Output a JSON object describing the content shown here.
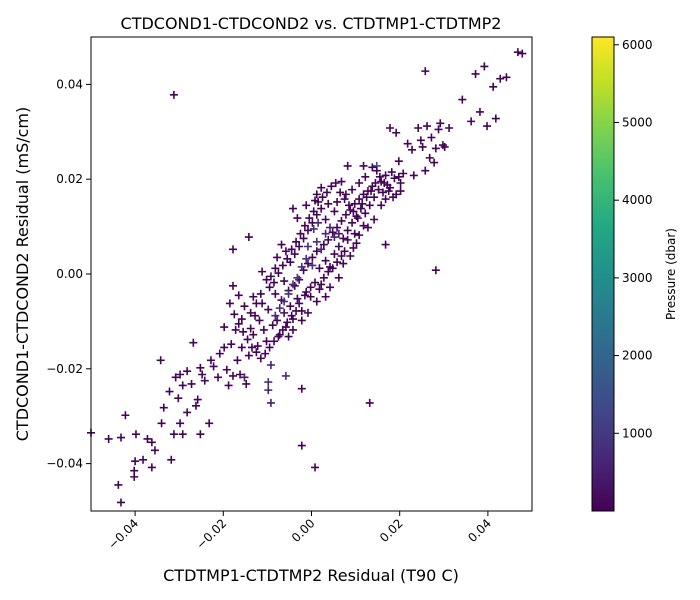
{
  "chart_data": {
    "type": "scatter",
    "title": "CTDCOND1-CTDCOND2 vs. CTDTMP1-CTDTMP2",
    "xlabel": "CTDTMP1-CTDTMP2 Residual (T90 C)",
    "ylabel": "CTDCOND1-CTDCOND2 Residual (mS/cm)",
    "xlim": [
      -0.05,
      0.05
    ],
    "ylim": [
      -0.05,
      0.05
    ],
    "xticks": [
      -0.04,
      -0.02,
      0.0,
      0.02,
      0.04
    ],
    "xtick_labels": [
      "−0.04",
      "−0.02",
      "0.00",
      "0.02",
      "0.04"
    ],
    "yticks": [
      -0.04,
      -0.02,
      0.0,
      0.02,
      0.04
    ],
    "ytick_labels": [
      "−0.04",
      "−0.02",
      "0.00",
      "0.02",
      "0.04"
    ],
    "marker": "+",
    "grid": false,
    "colorbar": {
      "label": "Pressure (dbar)",
      "colormap": "viridis",
      "range": [
        0,
        6100
      ],
      "ticks": [
        1000,
        2000,
        3000,
        4000,
        5000,
        6000
      ],
      "tick_labels": [
        "1000",
        "2000",
        "3000",
        "4000",
        "5000",
        "6000"
      ]
    },
    "points": [
      [
        -0.05,
        -0.0335,
        50
      ],
      [
        -0.046,
        -0.0348,
        50
      ],
      [
        -0.0432,
        -0.0345,
        50
      ],
      [
        -0.0422,
        -0.0298,
        50
      ],
      [
        -0.0438,
        -0.0445,
        50
      ],
      [
        -0.0432,
        -0.0482,
        50
      ],
      [
        -0.0402,
        -0.0415,
        50
      ],
      [
        -0.0402,
        -0.0428,
        50
      ],
      [
        -0.04,
        -0.0395,
        50
      ],
      [
        -0.0398,
        -0.0338,
        50
      ],
      [
        -0.0382,
        -0.0392,
        50
      ],
      [
        -0.0372,
        -0.0348,
        50
      ],
      [
        -0.0362,
        -0.0408,
        50
      ],
      [
        -0.0362,
        -0.0355,
        50
      ],
      [
        -0.0355,
        -0.0372,
        50
      ],
      [
        -0.034,
        -0.0315,
        50
      ],
      [
        -0.0335,
        -0.0282,
        50
      ],
      [
        -0.0342,
        -0.0182,
        50
      ],
      [
        -0.0322,
        -0.0248,
        50
      ],
      [
        -0.0318,
        -0.0392,
        50
      ],
      [
        -0.0312,
        -0.0338,
        50
      ],
      [
        -0.0308,
        -0.0218,
        50
      ],
      [
        -0.0302,
        -0.0262,
        50
      ],
      [
        -0.0298,
        -0.0212,
        50
      ],
      [
        -0.0298,
        -0.0315,
        50
      ],
      [
        -0.0292,
        -0.0338,
        50
      ],
      [
        -0.0292,
        -0.0235,
        50
      ],
      [
        -0.0282,
        -0.0292,
        50
      ],
      [
        -0.0282,
        -0.0205,
        50
      ],
      [
        -0.0272,
        -0.0232,
        50
      ],
      [
        -0.0268,
        -0.0145,
        50
      ],
      [
        -0.0262,
        -0.0278,
        50
      ],
      [
        -0.0258,
        -0.0265,
        50
      ],
      [
        -0.0252,
        -0.0198,
        50
      ],
      [
        -0.0252,
        -0.0338,
        50
      ],
      [
        -0.0248,
        -0.0212,
        50
      ],
      [
        -0.0242,
        -0.0225,
        200
      ],
      [
        -0.0232,
        -0.0315,
        50
      ],
      [
        -0.0228,
        -0.0182,
        50
      ],
      [
        -0.0222,
        -0.0195,
        50
      ],
      [
        -0.0212,
        -0.0218,
        50
      ],
      [
        -0.0208,
        -0.0168,
        50
      ],
      [
        -0.0198,
        -0.0155,
        50
      ],
      [
        -0.0198,
        -0.0112,
        50
      ],
      [
        -0.0192,
        -0.0202,
        50
      ],
      [
        -0.0188,
        -0.0235,
        50
      ],
      [
        -0.0182,
        -0.0148,
        50
      ],
      [
        -0.0178,
        -0.0215,
        50
      ],
      [
        -0.0172,
        -0.0118,
        50
      ],
      [
        -0.0168,
        -0.0182,
        50
      ],
      [
        -0.0162,
        -0.0212,
        50
      ],
      [
        -0.0158,
        -0.0155,
        50
      ],
      [
        -0.0158,
        -0.0095,
        50
      ],
      [
        -0.0152,
        -0.0218,
        500
      ],
      [
        -0.0148,
        -0.0232,
        50
      ],
      [
        -0.0142,
        -0.0172,
        50
      ],
      [
        -0.0138,
        -0.0115,
        50
      ],
      [
        -0.0132,
        -0.0128,
        50
      ],
      [
        -0.0128,
        -0.0088,
        50
      ],
      [
        -0.0122,
        -0.0152,
        50
      ],
      [
        -0.0118,
        -0.0098,
        50
      ],
      [
        -0.0112,
        -0.0062,
        50
      ],
      [
        -0.0108,
        -0.0118,
        50
      ],
      [
        -0.0102,
        -0.0142,
        50
      ],
      [
        -0.0098,
        -0.0075,
        50
      ],
      [
        -0.0092,
        -0.0192,
        500
      ],
      [
        -0.0088,
        -0.0108,
        50
      ],
      [
        -0.0082,
        -0.0042,
        50
      ],
      [
        -0.0078,
        -0.0098,
        50
      ],
      [
        -0.0072,
        -0.0128,
        50
      ],
      [
        -0.0068,
        -0.0055,
        50
      ],
      [
        -0.0062,
        -0.0082,
        200
      ],
      [
        -0.0058,
        -0.0112,
        50
      ],
      [
        -0.0052,
        -0.0035,
        50
      ],
      [
        -0.0048,
        -0.0068,
        50
      ],
      [
        -0.0042,
        -0.0095,
        50
      ],
      [
        -0.0038,
        -0.0025,
        50
      ],
      [
        -0.0032,
        -0.0052,
        50
      ],
      [
        -0.0028,
        -0.0012,
        50
      ],
      [
        -0.0022,
        -0.0078,
        50
      ],
      [
        -0.0018,
        0.0008,
        50
      ],
      [
        -0.0012,
        -0.0038,
        50
      ],
      [
        -0.0008,
        0.0022,
        50
      ],
      [
        -0.0002,
        -0.0048,
        50
      ],
      [
        0.0002,
        0.0035,
        50
      ],
      [
        0.0008,
        -0.0018,
        50
      ],
      [
        0.0012,
        0.0048,
        50
      ],
      [
        0.0018,
        0.0012,
        50
      ],
      [
        0.0022,
        -0.0022,
        50
      ],
      [
        0.0028,
        0.0062,
        50
      ],
      [
        0.0032,
        0.0028,
        50
      ],
      [
        0.0038,
        0.0072,
        50
      ],
      [
        0.0042,
        0.0015,
        50
      ],
      [
        0.0048,
        0.0088,
        50
      ],
      [
        0.0052,
        0.0042,
        50
      ],
      [
        0.0058,
        0.0098,
        50
      ],
      [
        0.0062,
        0.0058,
        50
      ],
      [
        0.0068,
        0.0112,
        50
      ],
      [
        0.0072,
        0.0075,
        50
      ],
      [
        0.0078,
        0.0125,
        50
      ],
      [
        0.0082,
        0.0092,
        50
      ],
      [
        0.0088,
        0.0135,
        50
      ],
      [
        0.0092,
        0.0108,
        50
      ],
      [
        0.0098,
        0.0148,
        50
      ],
      [
        0.0102,
        0.0122,
        50
      ],
      [
        0.0108,
        0.0158,
        50
      ],
      [
        0.0112,
        0.0138,
        50
      ],
      [
        0.0118,
        0.0168,
        50
      ],
      [
        0.0122,
        0.0128,
        50
      ],
      [
        0.0128,
        0.0175,
        50
      ],
      [
        0.0132,
        0.0145,
        50
      ],
      [
        0.0138,
        0.0185,
        50
      ],
      [
        0.0142,
        0.0162,
        50
      ],
      [
        0.0148,
        0.0228,
        1500
      ],
      [
        0.0152,
        0.0178,
        50
      ],
      [
        0.0158,
        0.0195,
        50
      ],
      [
        0.0162,
        0.0172,
        50
      ],
      [
        0.0168,
        0.0208,
        50
      ],
      [
        0.0172,
        0.0188,
        50
      ],
      [
        0.0178,
        0.0308,
        50
      ],
      [
        0.0182,
        0.0215,
        50
      ],
      [
        0.0188,
        0.0202,
        50
      ],
      [
        0.0192,
        0.0298,
        50
      ],
      [
        0.0198,
        0.0238,
        50
      ],
      [
        0.0202,
        0.0175,
        50
      ],
      [
        0.0208,
        0.0212,
        50
      ],
      [
        0.0218,
        0.0275,
        50
      ],
      [
        0.0228,
        0.0262,
        50
      ],
      [
        0.0232,
        0.0208,
        50
      ],
      [
        0.0242,
        0.0308,
        50
      ],
      [
        0.0248,
        0.0282,
        50
      ],
      [
        0.0252,
        0.0268,
        50
      ],
      [
        0.0258,
        0.0218,
        50
      ],
      [
        0.0258,
        0.0428,
        50
      ],
      [
        0.0262,
        0.0312,
        50
      ],
      [
        0.0268,
        0.0245,
        50
      ],
      [
        0.0272,
        0.0288,
        50
      ],
      [
        0.0278,
        0.0235,
        50
      ],
      [
        0.0282,
        0.0265,
        50
      ],
      [
        0.0282,
        0.0008,
        50
      ],
      [
        0.0288,
        0.0305,
        50
      ],
      [
        0.0292,
        0.0318,
        50
      ],
      [
        0.0298,
        0.0272,
        50
      ],
      [
        0.0302,
        0.0268,
        50
      ],
      [
        0.0312,
        0.0308,
        50
      ],
      [
        0.0342,
        0.0368,
        50
      ],
      [
        0.0362,
        0.0322,
        50
      ],
      [
        0.0372,
        0.0422,
        50
      ],
      [
        0.0382,
        0.0342,
        50
      ],
      [
        0.0392,
        0.0438,
        50
      ],
      [
        0.0398,
        0.0312,
        50
      ],
      [
        0.0412,
        0.0395,
        50
      ],
      [
        0.0418,
        0.0328,
        50
      ],
      [
        0.0428,
        0.0412,
        50
      ],
      [
        0.0442,
        0.0415,
        50
      ],
      [
        0.0468,
        0.0468,
        50
      ],
      [
        0.0478,
        0.0465,
        50
      ],
      [
        -0.0312,
        0.0378,
        50
      ],
      [
        -0.0178,
        0.0052,
        50
      ],
      [
        -0.0142,
        0.0078,
        50
      ],
      [
        0.0132,
        -0.0272,
        50
      ],
      [
        -0.0022,
        -0.0362,
        50
      ],
      [
        0.0008,
        -0.0408,
        50
      ],
      [
        -0.0022,
        -0.0242,
        50
      ],
      [
        -0.0092,
        -0.0272,
        500
      ],
      [
        -0.0098,
        -0.0245,
        500
      ],
      [
        -0.0098,
        -0.0228,
        800
      ],
      [
        -0.0058,
        -0.0215,
        800
      ],
      [
        -0.0132,
        -0.0048,
        50
      ],
      [
        -0.0112,
        0.0005,
        50
      ],
      [
        -0.0102,
        -0.0012,
        50
      ],
      [
        -0.0092,
        -0.0005,
        50
      ],
      [
        -0.0082,
        0.0012,
        50
      ],
      [
        0.0012,
        0.0168,
        50
      ],
      [
        0.0022,
        0.0182,
        50
      ],
      [
        0.0038,
        0.0148,
        50
      ],
      [
        0.0052,
        0.0132,
        50
      ],
      [
        0.0068,
        0.0195,
        50
      ],
      [
        0.0082,
        0.0228,
        50
      ],
      [
        0.0108,
        0.0192,
        50
      ],
      [
        0.0122,
        0.0205,
        50
      ],
      [
        0.0142,
        0.0115,
        50
      ],
      [
        0.0168,
        0.0062,
        50
      ],
      [
        0.0158,
        0.0145,
        50
      ],
      [
        0.0102,
        0.0065,
        50
      ],
      [
        0.0088,
        0.0038,
        50
      ],
      [
        0.0072,
        0.0022,
        50
      ],
      [
        0.0062,
        -0.0008,
        50
      ],
      [
        0.0042,
        -0.0028,
        50
      ],
      [
        0.0032,
        -0.0048,
        50
      ],
      [
        0.0012,
        -0.0058,
        50
      ],
      [
        -0.0008,
        -0.0082,
        50
      ],
      [
        -0.0022,
        -0.0098,
        50
      ],
      [
        -0.0042,
        -0.0118,
        50
      ],
      [
        -0.0052,
        -0.0132,
        50
      ],
      [
        -0.0062,
        -0.0015,
        50
      ],
      [
        -0.0048,
        0.0025,
        50
      ],
      [
        -0.0038,
        0.0042,
        50
      ],
      [
        -0.0028,
        0.0058,
        50
      ],
      [
        -0.0018,
        0.0075,
        50
      ],
      [
        -0.0008,
        0.0092,
        50
      ],
      [
        0.0002,
        0.0108,
        50
      ],
      [
        0.0012,
        0.0125,
        50
      ],
      [
        0.0022,
        0.0138,
        50
      ],
      [
        0.0032,
        0.0115,
        50
      ],
      [
        -0.0042,
        0.0138,
        50
      ],
      [
        -0.0032,
        0.0118,
        50
      ],
      [
        -0.0012,
        0.0145,
        50
      ],
      [
        0.0008,
        0.0155,
        50
      ],
      [
        -0.0078,
        0.0035,
        50
      ],
      [
        -0.0068,
        0.0062,
        50
      ],
      [
        -0.0058,
        0.0048,
        50
      ],
      [
        -0.0012,
        0.0032,
        900
      ],
      [
        0.0002,
        0.0018,
        900
      ],
      [
        0.0012,
        0.0068,
        900
      ],
      [
        0.0022,
        0.0052,
        700
      ],
      [
        -0.0022,
        0.0015,
        900
      ],
      [
        -0.0032,
        -0.0008,
        900
      ],
      [
        -0.0042,
        -0.0022,
        900
      ],
      [
        -0.0052,
        -0.0042,
        800
      ],
      [
        -0.0062,
        -0.0058,
        800
      ],
      [
        -0.0072,
        -0.0072,
        700
      ],
      [
        -0.0082,
        -0.0088,
        700
      ],
      [
        0.0032,
        0.0085,
        700
      ],
      [
        0.0042,
        0.0098,
        600
      ],
      [
        0.0052,
        0.0078,
        600
      ],
      [
        0.0062,
        0.0085,
        500
      ],
      [
        -0.0008,
        0.0058,
        800
      ],
      [
        0.0005,
        0.0095,
        800
      ],
      [
        0.0015,
        0.0108,
        700
      ],
      [
        0.0118,
        0.0228,
        50
      ],
      [
        0.0138,
        0.0225,
        50
      ],
      [
        0.0148,
        0.0218,
        50
      ],
      [
        0.0168,
        0.0158,
        50
      ],
      [
        0.0178,
        0.0182,
        50
      ],
      [
        0.0192,
        0.0168,
        50
      ],
      [
        0.0202,
        0.0192,
        50
      ],
      [
        0.0198,
        0.0205,
        50
      ],
      [
        0.0092,
        0.0178,
        50
      ],
      [
        0.0078,
        0.0168,
        50
      ],
      [
        0.0058,
        0.0152,
        50
      ],
      [
        0.0118,
        0.0102,
        50
      ],
      [
        0.0128,
        0.0098,
        50
      ],
      [
        0.0098,
        0.0085,
        50
      ],
      [
        0.0082,
        0.0072,
        50
      ],
      [
        0.0108,
        0.0082,
        50
      ],
      [
        0.0095,
        0.0055,
        50
      ],
      [
        0.0075,
        0.0048,
        50
      ],
      [
        0.0068,
        0.0038,
        50
      ],
      [
        0.0058,
        0.0025,
        50
      ],
      [
        0.0048,
        0.0012,
        50
      ],
      [
        0.0038,
        0.0005,
        50
      ],
      [
        0.0028,
        -0.0008,
        50
      ],
      [
        0.0018,
        -0.0032,
        50
      ],
      [
        -0.0002,
        -0.0028,
        50
      ],
      [
        -0.0015,
        -0.0045,
        50
      ],
      [
        -0.0028,
        -0.0062,
        50
      ],
      [
        -0.0035,
        -0.0078,
        50
      ],
      [
        -0.0045,
        -0.0088,
        50
      ],
      [
        -0.0055,
        -0.0102,
        50
      ],
      [
        -0.0065,
        -0.0118,
        50
      ],
      [
        -0.0075,
        -0.0132,
        50
      ],
      [
        -0.0085,
        -0.0142,
        50
      ],
      [
        -0.0095,
        -0.0155,
        50
      ],
      [
        -0.0105,
        -0.0168,
        50
      ],
      [
        -0.0115,
        -0.0178,
        50
      ],
      [
        -0.0125,
        -0.0165,
        50
      ],
      [
        -0.0135,
        -0.0155,
        50
      ],
      [
        -0.0145,
        -0.0138,
        50
      ],
      [
        -0.0155,
        -0.0122,
        50
      ],
      [
        -0.0165,
        -0.0105,
        50
      ],
      [
        -0.0175,
        -0.0085,
        50
      ],
      [
        -0.0185,
        -0.0062,
        50
      ],
      [
        -0.0178,
        -0.0025,
        50
      ],
      [
        -0.0165,
        -0.0045,
        50
      ],
      [
        -0.0152,
        -0.0068,
        50
      ],
      [
        -0.0138,
        -0.0082,
        50
      ],
      [
        -0.0125,
        -0.0062,
        50
      ],
      [
        -0.0115,
        -0.0042,
        50
      ],
      [
        -0.0095,
        -0.0028,
        50
      ],
      [
        -0.0085,
        -0.0018,
        50
      ],
      [
        -0.0075,
        0.0002,
        50
      ],
      [
        -0.0065,
        0.0018,
        50
      ],
      [
        -0.0055,
        0.0032,
        50
      ],
      [
        -0.0045,
        0.0052,
        50
      ],
      [
        -0.0035,
        0.0068,
        50
      ],
      [
        -0.0025,
        0.0085,
        50
      ],
      [
        -0.0015,
        0.0102,
        50
      ],
      [
        -0.0005,
        0.0118,
        50
      ],
      [
        0.0005,
        0.0132,
        50
      ],
      [
        0.0015,
        0.0152,
        50
      ],
      [
        0.0025,
        0.0162,
        50
      ],
      [
        0.0035,
        0.0172,
        50
      ],
      [
        0.0045,
        0.0185,
        50
      ],
      [
        0.0055,
        0.0192,
        50
      ],
      [
        0.0065,
        0.0172,
        50
      ],
      [
        0.0075,
        0.0158,
        50
      ],
      [
        0.0085,
        0.0145,
        50
      ],
      [
        0.0095,
        0.0132,
        50
      ],
      [
        0.0105,
        0.0118,
        50
      ],
      [
        0.0115,
        0.0148,
        50
      ],
      [
        0.0125,
        0.0162,
        50
      ],
      [
        0.0135,
        0.0175,
        50
      ],
      [
        0.0145,
        0.0192,
        50
      ],
      [
        0.0155,
        0.0205,
        50
      ],
      [
        0.0165,
        0.0192,
        50
      ],
      [
        0.0175,
        0.0175,
        50
      ],
      [
        0.0185,
        0.0162,
        50
      ]
    ]
  }
}
